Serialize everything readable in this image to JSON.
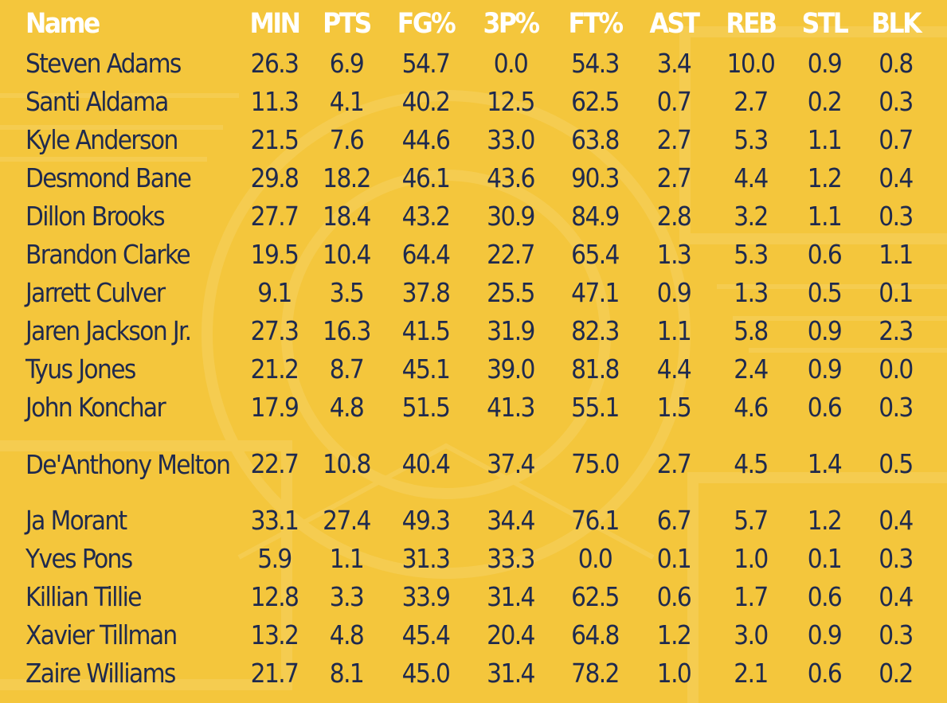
{
  "table": {
    "headers": [
      "Name",
      "MIN",
      "PTS",
      "FG%",
      "3P%",
      "FT%",
      "AST",
      "REB",
      "STL",
      "BLK"
    ],
    "rows": [
      [
        "Steven Adams",
        "26.3",
        "6.9",
        "54.7",
        "0.0",
        "54.3",
        "3.4",
        "10.0",
        "0.9",
        "0.8"
      ],
      [
        "Santi Aldama",
        "11.3",
        "4.1",
        "40.2",
        "12.5",
        "62.5",
        "0.7",
        "2.7",
        "0.2",
        "0.3"
      ],
      [
        "Kyle Anderson",
        "21.5",
        "7.6",
        "44.6",
        "33.0",
        "63.8",
        "2.7",
        "5.3",
        "1.1",
        "0.7"
      ],
      [
        "Desmond Bane",
        "29.8",
        "18.2",
        "46.1",
        "43.6",
        "90.3",
        "2.7",
        "4.4",
        "1.2",
        "0.4"
      ],
      [
        "Dillon Brooks",
        "27.7",
        "18.4",
        "43.2",
        "30.9",
        "84.9",
        "2.8",
        "3.2",
        "1.1",
        "0.3"
      ],
      [
        "Brandon Clarke",
        "19.5",
        "10.4",
        "64.4",
        "22.7",
        "65.4",
        "1.3",
        "5.3",
        "0.6",
        "1.1"
      ],
      [
        "Jarrett Culver",
        "9.1",
        "3.5",
        "37.8",
        "25.5",
        "47.1",
        "0.9",
        "1.3",
        "0.5",
        "0.1"
      ],
      [
        "Jaren Jackson Jr.",
        "27.3",
        "16.3",
        "41.5",
        "31.9",
        "82.3",
        "1.1",
        "5.8",
        "0.9",
        "2.3"
      ],
      [
        "Tyus Jones",
        "21.2",
        "8.7",
        "45.1",
        "39.0",
        "81.8",
        "4.4",
        "2.4",
        "0.9",
        "0.0"
      ],
      [
        "John Konchar",
        "17.9",
        "4.8",
        "51.5",
        "41.3",
        "55.1",
        "1.5",
        "4.6",
        "0.6",
        "0.3"
      ],
      [
        "De'Anthony Melton",
        "22.7",
        "10.8",
        "40.4",
        "37.4",
        "75.0",
        "2.7",
        "4.5",
        "1.4",
        "0.5"
      ],
      [
        "Ja Morant",
        "33.1",
        "27.4",
        "49.3",
        "34.4",
        "76.1",
        "6.7",
        "5.7",
        "1.2",
        "0.4"
      ],
      [
        "Yves Pons",
        "5.9",
        "1.1",
        "31.3",
        "33.3",
        "0.0",
        "0.1",
        "1.0",
        "0.1",
        "0.3"
      ],
      [
        "Killian Tillie",
        "12.8",
        "3.3",
        "33.9",
        "31.4",
        "62.5",
        "0.6",
        "1.7",
        "0.6",
        "0.4"
      ],
      [
        "Xavier Tillman",
        "13.2",
        "4.8",
        "45.4",
        "20.4",
        "64.8",
        "1.2",
        "3.0",
        "0.9",
        "0.3"
      ],
      [
        "Zaire Williams",
        "21.7",
        "8.1",
        "45.0",
        "31.4",
        "78.2",
        "1.0",
        "2.1",
        "0.6",
        "0.2"
      ]
    ]
  },
  "colors": {
    "background": "#f4c63c",
    "header_text": "#ffffff",
    "cell_text": "#1f2a4e"
  }
}
